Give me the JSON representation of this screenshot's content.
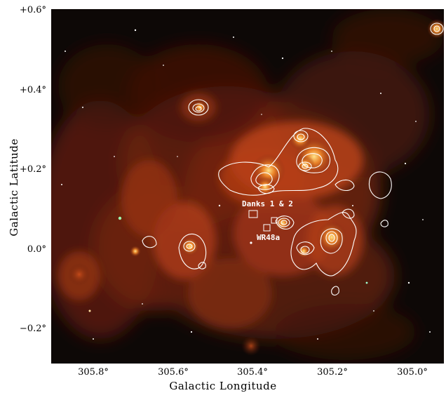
{
  "figure": {
    "xlabel": "Galactic Longitude",
    "ylabel": "Galactic Latitude",
    "x_ticks": [
      "305.8°",
      "305.6°",
      "305.4°",
      "305.2°",
      "305.0°"
    ],
    "y_ticks": [
      "+0.6°",
      "+0.4°",
      "+0.2°",
      "0.0°",
      "−0.2°"
    ],
    "annotations": {
      "cluster_label": "Danks 1 & 2",
      "star_label": "WR48a"
    },
    "colors": {
      "background": "#0d0806",
      "nebula_core": "#f6c24a",
      "nebula_mid": "#d8531c",
      "nebula_outer": "#7a2410",
      "contour": "#ffffff"
    }
  }
}
